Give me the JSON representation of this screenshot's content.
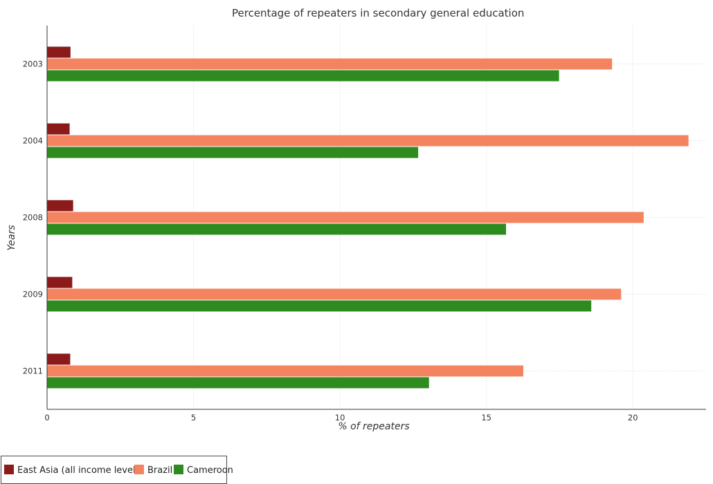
{
  "chart_data": {
    "type": "bar",
    "orientation": "horizontal",
    "title": "Percentage of repeaters in secondary general education",
    "xlabel": "% of repeaters",
    "ylabel": "Years",
    "categories": [
      "2003",
      "2004",
      "2008",
      "2009",
      "2011"
    ],
    "xlim": [
      0,
      22.5
    ],
    "xticks": [
      0,
      5,
      10,
      15,
      20
    ],
    "grid": true,
    "legend_position": "bottom-left",
    "series": [
      {
        "name": "East Asia (all income levels)",
        "color": "#8b1a1a",
        "values": [
          0.8,
          0.77,
          0.89,
          0.86,
          0.79
        ]
      },
      {
        "name": "Brazil",
        "color": "#f4845f",
        "values": [
          19.29,
          21.9,
          20.37,
          19.6,
          16.26
        ]
      },
      {
        "name": "Cameroon",
        "color": "#2e8b1f",
        "values": [
          17.48,
          12.67,
          15.67,
          18.58,
          13.04
        ]
      }
    ]
  }
}
